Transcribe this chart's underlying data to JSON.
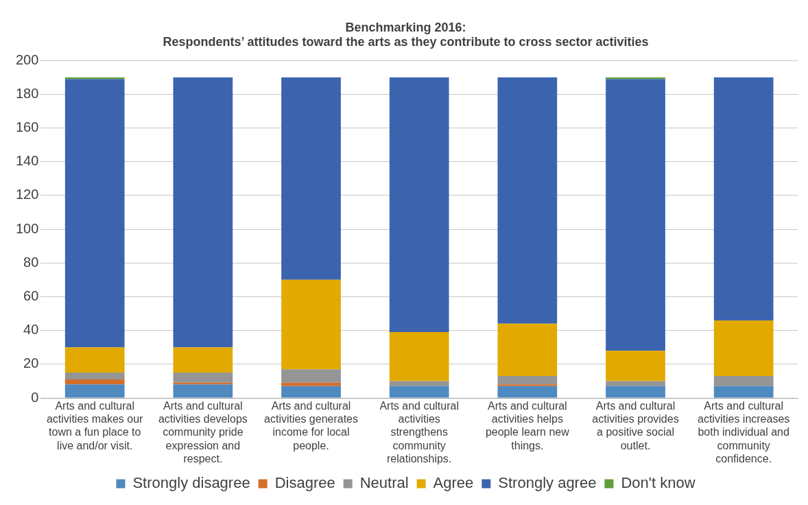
{
  "chart_data": {
    "type": "bar",
    "stacked": true,
    "title": "Benchmarking 2016:\nRespondents’ attitudes toward the arts as they contribute to cross sector activities",
    "categories": [
      "Arts and cultural activities makes our town a fun place to live and/or visit.",
      "Arts and cultural activities develops community pride expression and respect.",
      "Arts and cultural activities generates income for local people.",
      "Arts and cultural activities strengthens community relationships.",
      "Arts and cultural activities helps people learn new things.",
      "Arts and cultural activities provides a positive social outlet.",
      "Arts and cultural activities increases both individual and community confidence."
    ],
    "series": [
      {
        "name": "Strongly disagree",
        "color": "#4e89c0",
        "values": [
          8,
          8,
          7,
          7,
          7,
          7,
          7
        ]
      },
      {
        "name": "Disagree",
        "color": "#d46f2b",
        "values": [
          3,
          1,
          2,
          0,
          1,
          0,
          0
        ]
      },
      {
        "name": "Neutral",
        "color": "#959595",
        "values": [
          4,
          6,
          8,
          3,
          5,
          3,
          6
        ]
      },
      {
        "name": "Agree",
        "color": "#e2aa00",
        "values": [
          15,
          15,
          53,
          29,
          31,
          18,
          33
        ]
      },
      {
        "name": "Strongly agree",
        "color": "#3c64ae",
        "values": [
          159,
          160,
          120,
          151,
          146,
          161,
          144
        ]
      },
      {
        "name": "Don't know",
        "color": "#5f9e3a",
        "values": [
          1,
          0,
          0,
          0,
          0,
          1,
          0
        ]
      }
    ],
    "ylim": [
      0,
      200
    ],
    "yticks": [
      0,
      20,
      40,
      60,
      80,
      100,
      120,
      140,
      160,
      180,
      200
    ],
    "grid": "y",
    "legend": "bottom"
  }
}
